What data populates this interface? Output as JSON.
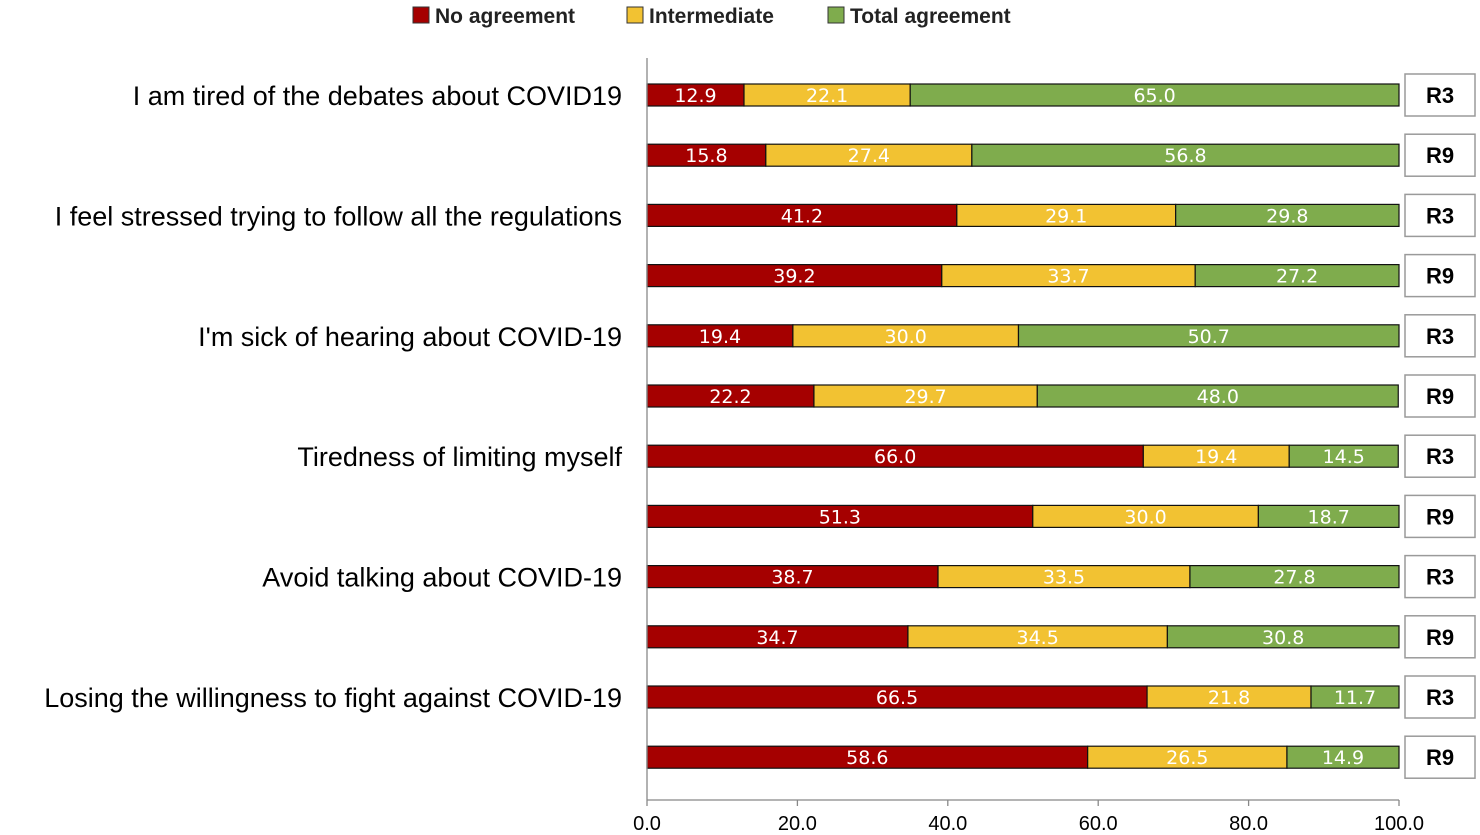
{
  "chart_data": {
    "type": "bar",
    "orientation": "horizontal",
    "stacked": true,
    "percent_stacked": true,
    "xlim": [
      0,
      100
    ],
    "x_ticks": [
      "0.0",
      "20.0",
      "40.0",
      "60.0",
      "80.0",
      "100.0"
    ],
    "legend_position": "top",
    "grid": false,
    "series": [
      {
        "name": "No agreement",
        "color": "#a50000"
      },
      {
        "name": "Intermediate",
        "color": "#f2c232"
      },
      {
        "name": "Total agreement",
        "color": "#7fac4d"
      }
    ],
    "groups": [
      {
        "label": "I am tired of the debates about COVID19",
        "rows": [
          {
            "round": "R3",
            "values": [
              12.9,
              22.1,
              65.0
            ],
            "labels": [
              "12.9",
              "22.1",
              "65.0"
            ]
          },
          {
            "round": "R9",
            "values": [
              15.8,
              27.4,
              56.8
            ],
            "labels": [
              "15.8",
              "27.4",
              "56.8"
            ]
          }
        ]
      },
      {
        "label": "I feel stressed trying to follow all the regulations",
        "rows": [
          {
            "round": "R3",
            "values": [
              41.2,
              29.1,
              29.8
            ],
            "labels": [
              "41.2",
              "29.1",
              "29.8"
            ]
          },
          {
            "round": "R9",
            "values": [
              39.2,
              33.7,
              27.2
            ],
            "labels": [
              "39.2",
              "33.7",
              "27.2"
            ]
          }
        ]
      },
      {
        "label": "I'm sick of hearing about COVID-19",
        "rows": [
          {
            "round": "R3",
            "values": [
              19.4,
              30.0,
              50.7
            ],
            "labels": [
              "19.4",
              "30.0",
              "50.7"
            ]
          },
          {
            "round": "R9",
            "values": [
              22.2,
              29.7,
              48.0
            ],
            "labels": [
              "22.2",
              "29.7",
              "48.0"
            ]
          }
        ]
      },
      {
        "label": "Tiredness of limiting myself",
        "rows": [
          {
            "round": "R3",
            "values": [
              66.0,
              19.4,
              14.5
            ],
            "labels": [
              "66.0",
              "19.4",
              "14.5"
            ]
          },
          {
            "round": "R9",
            "values": [
              51.3,
              30.0,
              18.7
            ],
            "labels": [
              "51.3",
              "30.0",
              "18.7"
            ]
          }
        ]
      },
      {
        "label": "Avoid talking about COVID-19",
        "rows": [
          {
            "round": "R3",
            "values": [
              38.7,
              33.5,
              27.8
            ],
            "labels": [
              "38.7",
              "33.5",
              "27.8"
            ]
          },
          {
            "round": "R9",
            "values": [
              34.7,
              34.5,
              30.8
            ],
            "labels": [
              "34.7",
              "34.5",
              "30.8"
            ]
          }
        ]
      },
      {
        "label": "Losing the willingness to fight against COVID-19",
        "rows": [
          {
            "round": "R3",
            "values": [
              66.5,
              21.8,
              11.7
            ],
            "labels": [
              "66.5",
              "21.8",
              "11.7"
            ]
          },
          {
            "round": "R9",
            "values": [
              58.6,
              26.5,
              14.9
            ],
            "labels": [
              "58.6",
              "26.5",
              "14.9"
            ]
          }
        ]
      }
    ]
  }
}
